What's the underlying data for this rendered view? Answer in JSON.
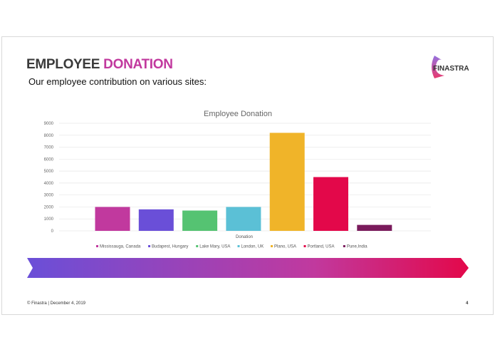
{
  "slide": {
    "title_part1": "EMPLOYEE",
    "title_part2": "DONATION",
    "subtitle": "Our employee contribution on various sites:",
    "logo_text": "FINASTRA",
    "footer": "© Finastra  |  December 4, 2019",
    "page_number": "4",
    "accent_color": "#c1399e",
    "banner_gradient": [
      "#6a4fd8",
      "#c1399e",
      "#e3084a"
    ]
  },
  "chart_data": {
    "type": "bar",
    "title": "Employee Donation",
    "xlabel": "Donation",
    "categories": [
      "Donation"
    ],
    "ylim": [
      0,
      9000
    ],
    "yticks": [
      0,
      1000,
      2000,
      3000,
      4000,
      5000,
      6000,
      7000,
      8000,
      9000
    ],
    "grid": true,
    "legend_position": "bottom",
    "series": [
      {
        "name": "Mississauga, Canada",
        "values": [
          2000
        ],
        "color": "#c1399e"
      },
      {
        "name": "Budapest, Hungary",
        "values": [
          1800
        ],
        "color": "#6a4fd8"
      },
      {
        "name": "Lake Mary, USA",
        "values": [
          1700
        ],
        "color": "#55c372"
      },
      {
        "name": "London, UK",
        "values": [
          2000
        ],
        "color": "#5bc0d6"
      },
      {
        "name": "Plano, USA",
        "values": [
          8200
        ],
        "color": "#f0b429"
      },
      {
        "name": "Portland, USA",
        "values": [
          4500
        ],
        "color": "#e3084a"
      },
      {
        "name": "Pune,India",
        "values": [
          500
        ],
        "color": "#7a1b5c"
      }
    ]
  }
}
